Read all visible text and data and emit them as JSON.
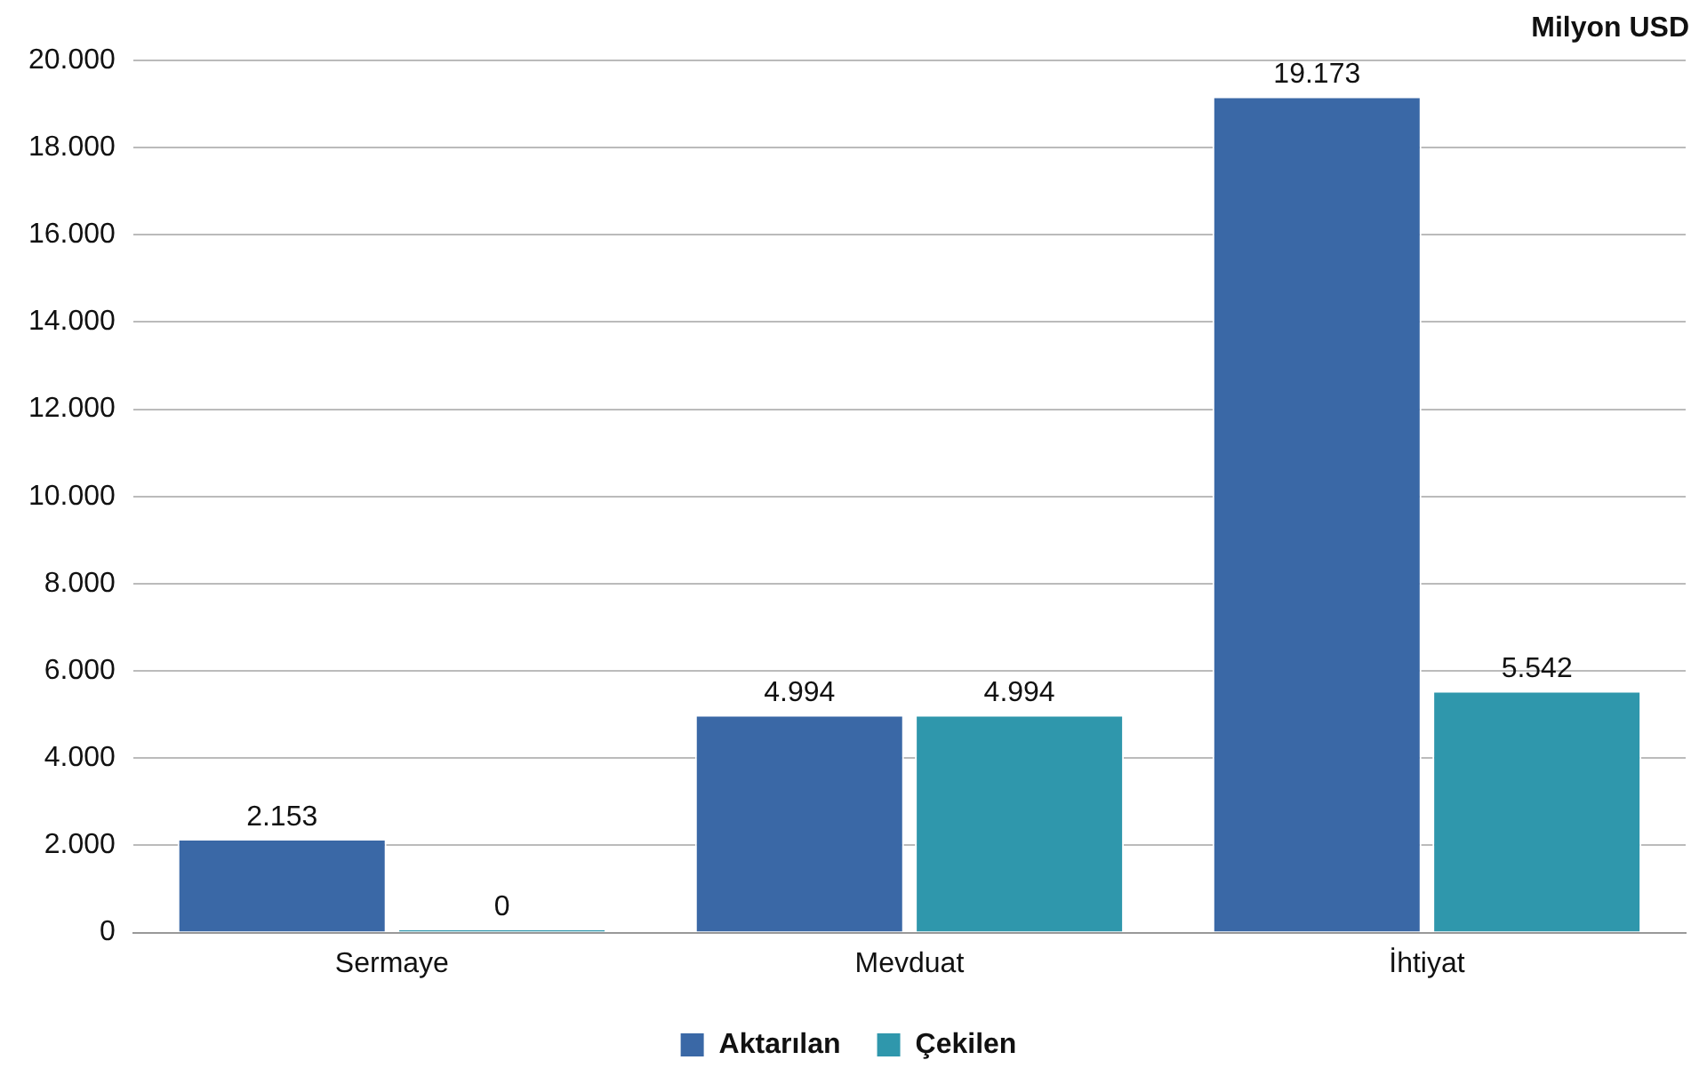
{
  "chart_data": {
    "type": "bar",
    "ylabel": "Milyon USD",
    "categories": [
      "Sermaye",
      "Mevduat",
      "İhtiyat"
    ],
    "series": [
      {
        "name": "Aktarılan",
        "color": "#3a68a6",
        "values": [
          2153,
          4994,
          19173
        ],
        "value_labels": [
          "2.153",
          "4.994",
          "19.173"
        ]
      },
      {
        "name": "Çekilen",
        "color": "#2f97ac",
        "values": [
          0,
          4994,
          5542
        ],
        "value_labels": [
          "0",
          "4.994",
          "5.542"
        ]
      }
    ],
    "ylim": [
      0,
      20000
    ],
    "yticks": [
      {
        "value": 0,
        "label": "0"
      },
      {
        "value": 2000,
        "label": "2.000"
      },
      {
        "value": 4000,
        "label": "4.000"
      },
      {
        "value": 6000,
        "label": "6.000"
      },
      {
        "value": 8000,
        "label": "8.000"
      },
      {
        "value": 10000,
        "label": "10.000"
      },
      {
        "value": 12000,
        "label": "12.000"
      },
      {
        "value": 14000,
        "label": "14.000"
      },
      {
        "value": 16000,
        "label": "16.000"
      },
      {
        "value": 18000,
        "label": "18.000"
      },
      {
        "value": 20000,
        "label": "20.000"
      }
    ],
    "grid": "y",
    "legend": "bottom"
  }
}
